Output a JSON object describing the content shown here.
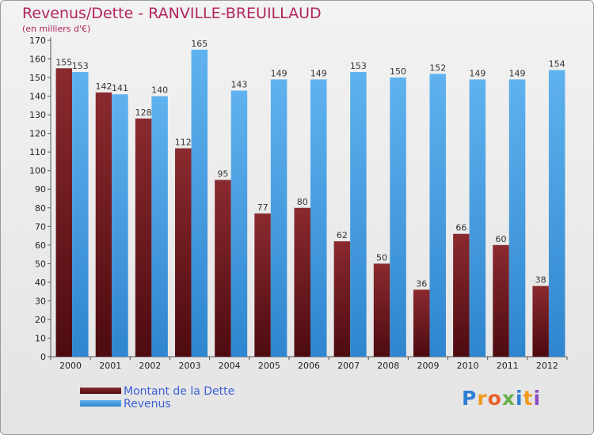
{
  "chart_data": {
    "type": "bar",
    "title": "Revenus/Dette - RANVILLE-BREUILLAUD",
    "subtitle": "(en milliers d'€)",
    "categories": [
      "2000",
      "2001",
      "2002",
      "2003",
      "2004",
      "2005",
      "2006",
      "2007",
      "2008",
      "2009",
      "2010",
      "2011",
      "2012"
    ],
    "series": [
      {
        "name": "Montant de la Dette",
        "color": "#6e1a1f",
        "values": [
          155,
          142,
          128,
          112,
          95,
          77,
          80,
          62,
          50,
          36,
          66,
          60,
          38
        ]
      },
      {
        "name": "Revenus",
        "color": "#4aa3e6",
        "values": [
          153,
          141,
          140,
          165,
          143,
          149,
          149,
          153,
          150,
          152,
          149,
          149,
          154
        ]
      }
    ],
    "ylim": [
      0,
      170
    ],
    "ytick_step": 10,
    "grid": false,
    "legend_position": "bottom-left",
    "data_labels": true
  },
  "logo": {
    "text": "Proxiti",
    "letters": [
      "P",
      "r",
      "o",
      "x",
      "i",
      "t",
      "i"
    ],
    "colors": [
      "#2f7fd6",
      "#f09a1e",
      "#e8602c",
      "#6ab04c",
      "#2f7fd6",
      "#f09a1e",
      "#8a4cc5"
    ]
  }
}
